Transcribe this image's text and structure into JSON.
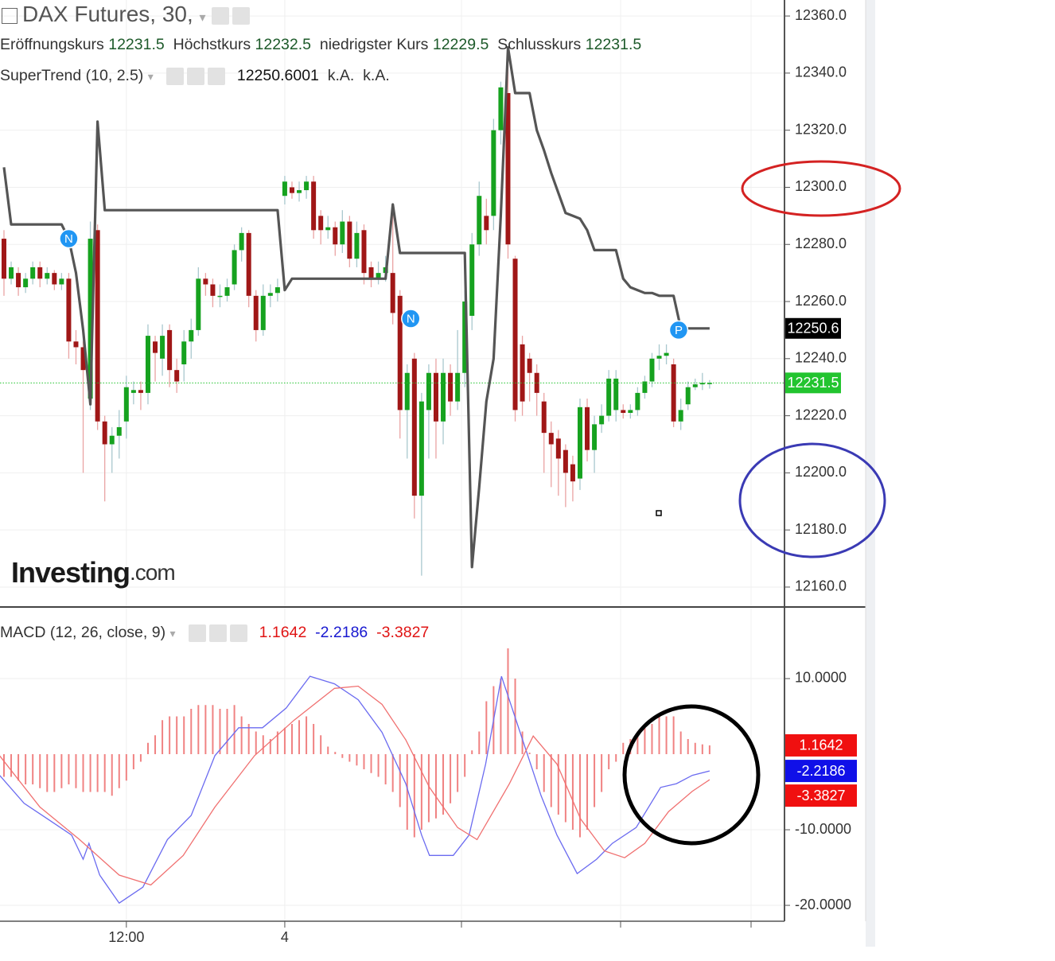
{
  "chart_data": [
    {
      "type": "candlestick",
      "title": "DAX Futures, 30,",
      "ohlc_labels": [
        "Eröffnungskurs",
        "Höchstkurs",
        "niedrigster Kurs",
        "Schlusskurs"
      ],
      "ohlc_last": [
        12231.5,
        12232.5,
        12229.5,
        12231.5
      ],
      "up_color": "#16a21f",
      "down_color": "#a01717",
      "up_wick": "#a9c8ce",
      "down_wick": "#eaa3a3",
      "open": [
        12282,
        12268,
        12270,
        12265,
        12268,
        12272,
        12268,
        12270,
        12266,
        12268,
        12246,
        12244,
        12226,
        12285,
        12218,
        12210,
        12213,
        12218,
        12228,
        12229,
        12228,
        12246,
        12240,
        12250,
        12236,
        12238,
        12246,
        12250,
        12268,
        12266,
        12262,
        12262,
        12266,
        12278,
        12284,
        12262,
        12250,
        12262,
        12263,
        12297,
        12300,
        12298,
        12299,
        12302,
        12290,
        12285,
        12286,
        12280,
        12288,
        12275,
        12285,
        12272,
        12268,
        12270,
        12270,
        12262,
        12222,
        12240,
        12192,
        12222,
        12235,
        12218,
        12235,
        12225,
        12235,
        12255,
        12280,
        12290,
        12290,
        12320,
        12333,
        12275,
        12245,
        12240,
        12235,
        12225,
        12214,
        12212,
        12208,
        12203,
        12198,
        12223,
        12208,
        12217,
        12220,
        12222,
        12222,
        12221,
        12222,
        12228,
        12232,
        12240,
        12241,
        12238,
        12218,
        12224,
        12230,
        12231,
        12231.5
      ],
      "high": [
        12285,
        12274,
        12272,
        12270,
        12274,
        12274,
        12272,
        12271,
        12270,
        12270,
        12250,
        12246,
        12288,
        12287,
        12220,
        12216,
        12222,
        12234,
        12232,
        12232,
        12252,
        12248,
        12252,
        12252,
        12240,
        12250,
        12254,
        12272,
        12270,
        12268,
        12266,
        12268,
        12280,
        12286,
        12285,
        12264,
        12266,
        12266,
        12268,
        12304,
        12302,
        12302,
        12304,
        12304,
        12292,
        12290,
        12288,
        12292,
        12290,
        12288,
        12287,
        12274,
        12274,
        12276,
        12294,
        12264,
        12238,
        12242,
        12228,
        12238,
        12240,
        12240,
        12238,
        12250,
        12264,
        12284,
        12302,
        12296,
        12324,
        12337,
        12349,
        12276,
        12248,
        12242,
        12238,
        12228,
        12218,
        12215,
        12210,
        12206,
        12226,
        12226,
        12220,
        12224,
        12236,
        12236,
        12224,
        12224,
        12230,
        12234,
        12242,
        12245,
        12245,
        12240,
        12226,
        12232,
        12233,
        12235,
        12232.5
      ],
      "low": [
        12262,
        12266,
        12262,
        12263,
        12266,
        12265,
        12266,
        12264,
        12264,
        12240,
        12238,
        12200,
        12222,
        12215,
        12190,
        12200,
        12205,
        12212,
        12224,
        12222,
        12224,
        12232,
        12234,
        12230,
        12228,
        12232,
        12240,
        12248,
        12262,
        12258,
        12258,
        12260,
        12264,
        12274,
        12258,
        12246,
        12248,
        12258,
        12260,
        12294,
        12296,
        12295,
        12296,
        12282,
        12280,
        12282,
        12276,
        12277,
        12272,
        12272,
        12266,
        12265,
        12266,
        12267,
        12252,
        12212,
        12205,
        12184,
        12164,
        12205,
        12205,
        12210,
        12220,
        12222,
        12230,
        12250,
        12276,
        12280,
        12285,
        12315,
        12275,
        12218,
        12220,
        12225,
        12220,
        12200,
        12195,
        12192,
        12188,
        12190,
        12194,
        12204,
        12200,
        12214,
        12218,
        12218,
        12219,
        12219,
        12220,
        12226,
        12230,
        12236,
        12238,
        12216,
        12215,
        12222,
        12229,
        12229,
        12229.5
      ],
      "close": [
        12268,
        12272,
        12265,
        12268,
        12272,
        12268,
        12270,
        12266,
        12268,
        12246,
        12244,
        12236,
        12282,
        12218,
        12210,
        12213,
        12216,
        12230,
        12229,
        12228,
        12248,
        12242,
        12248,
        12236,
        12232,
        12246,
        12250,
        12268,
        12266,
        12262,
        12262,
        12265,
        12278,
        12284,
        12262,
        12250,
        12262,
        12263,
        12265,
        12302,
        12298,
        12299,
        12302,
        12285,
        12285,
        12286,
        12280,
        12288,
        12275,
        12284,
        12270,
        12268,
        12270,
        12272,
        12256,
        12222,
        12235,
        12192,
        12225,
        12235,
        12218,
        12235,
        12225,
        12235,
        12260,
        12280,
        12297,
        12285,
        12320,
        12335,
        12280,
        12222,
        12225,
        12235,
        12228,
        12214,
        12210,
        12205,
        12200,
        12197,
        12223,
        12208,
        12217,
        12220,
        12233,
        12233,
        12221,
        12222,
        12228,
        12232,
        12240,
        12241,
        12242,
        12218,
        12222,
        12230,
        12231,
        12231.5,
        12231.5
      ],
      "indicator": {
        "name": "SuperTrend (10, 2.5)",
        "value": 12250.6001,
        "extra": [
          "k.A.",
          "k.A."
        ],
        "color": "#555555",
        "values": [
          12307,
          12287,
          12287,
          12287,
          12287,
          12287,
          12287,
          12287,
          12287,
          12282,
          12270,
          12250,
          12224,
          12323,
          12292,
          12292,
          12292,
          12292,
          12292,
          12292,
          12292,
          12292,
          12292,
          12292,
          12292,
          12292,
          12292,
          12292,
          12292,
          12292,
          12292,
          12292,
          12292,
          12292,
          12292,
          12292,
          12292,
          12292,
          12292,
          12264,
          12268,
          12268,
          12268,
          12268,
          12268,
          12268,
          12268,
          12268,
          12268,
          12268,
          12268,
          12268,
          12268,
          12268,
          12294,
          12277,
          12277,
          12277,
          12277,
          12277,
          12277,
          12277,
          12277,
          12277,
          12277,
          12167,
          12195,
          12225,
          12240,
          12290,
          12349,
          12333,
          12333,
          12333,
          12320,
          12313,
          12305,
          12298,
          12291,
          12290,
          12289,
          12285,
          12278,
          12278,
          12278,
          12278,
          12268,
          12265,
          12264,
          12263,
          12263,
          12262,
          12262,
          12262,
          12250.6,
          12250.6,
          12250.6,
          12250.6,
          12250.6
        ]
      },
      "markers": [
        {
          "label": "N",
          "x": 9,
          "value": 12282
        },
        {
          "label": "N",
          "x": 56.5,
          "value": 12254
        },
        {
          "label": "P",
          "x": 93.7,
          "value": 12250
        }
      ],
      "marker_color": "#2196f3",
      "price_labels": [
        {
          "value": 12250.6,
          "color": "#000000",
          "line": false
        },
        {
          "value": 12231.5,
          "color": "#22c42f",
          "line": true
        }
      ],
      "xlim": [
        -0.55,
        108.29
      ],
      "xticks": [
        {
          "value": 17,
          "label": "12:00"
        },
        {
          "value": 39,
          "label": "4"
        }
      ],
      "ylim": [
        12153.3,
        12365.6
      ],
      "yticks": [
        {
          "value": 12160,
          "label": "12160.0"
        },
        {
          "value": 12180,
          "label": "12180.0"
        },
        {
          "value": 12200,
          "label": "12200.0"
        },
        {
          "value": 12220,
          "label": "12220.0"
        },
        {
          "value": 12240,
          "label": "12240.0"
        },
        {
          "value": 12260,
          "label": "12260.0"
        },
        {
          "value": 12280,
          "label": "12280.0"
        },
        {
          "value": 12300,
          "label": "12300.0"
        },
        {
          "value": 12320,
          "label": "12320.0"
        },
        {
          "value": 12340,
          "label": "12340.0"
        },
        {
          "value": 12360,
          "label": "12360.0"
        }
      ],
      "grid": true,
      "watermark": [
        "Investing",
        ".com"
      ]
    },
    {
      "type": "macd",
      "title": "MACD (12, 26, close, 9)",
      "legend_values": [
        {
          "value": 1.1642,
          "color": "#e01414"
        },
        {
          "value": -2.2186,
          "color": "#1818d0"
        },
        {
          "value": -3.3827,
          "color": "#e01414"
        }
      ],
      "histogram": {
        "color": "#f08282",
        "values": [
          -3,
          -3,
          -3.5,
          -4,
          -4,
          -4.5,
          -5,
          -5,
          -4.5,
          -4,
          -4.5,
          -5,
          -5,
          -5,
          -5,
          -5.5,
          -4.5,
          -3.5,
          -2,
          -1,
          1.5,
          2.5,
          4.5,
          5,
          5,
          5,
          6,
          6.5,
          6.5,
          6.5,
          6,
          6,
          6.5,
          5,
          4,
          3,
          2.5,
          2,
          3,
          3.5,
          4,
          4.5,
          5,
          4,
          2.5,
          1,
          0.3,
          -0.5,
          -1,
          -1.5,
          -2,
          -2.5,
          -3,
          -4,
          -5,
          -7,
          -10,
          -11,
          -10,
          -9,
          -8.5,
          -8,
          -6.5,
          -5,
          -3,
          0.5,
          3,
          7,
          9,
          10,
          14,
          10,
          3,
          0.2,
          -2,
          -5,
          -7,
          -8,
          -9,
          -10,
          -11,
          -10,
          -7,
          -5,
          -2,
          -1,
          1.5,
          2,
          3,
          3.5,
          4,
          5,
          5,
          5,
          3,
          2,
          1.5,
          1.3,
          1.1642
        ]
      },
      "series": [
        {
          "color": "#6b6bf0",
          "x": [
            -0.6,
            2.8,
            6.1,
            9.4,
            11,
            11.8,
            13.3,
            16,
            19.3,
            22.7,
            26,
            29.3,
            32.6,
            35.9,
            39.2,
            42.5,
            45.9,
            49.2,
            52.5,
            55.8,
            58,
            59.1,
            62.4,
            64.6,
            66.9,
            69.1,
            71.3,
            74.6,
            76.8,
            79.6,
            82.3,
            84.5,
            87.8,
            91.2,
            93.4,
            95.6,
            98
          ],
          "values": [
            -2.8,
            -6.5,
            -8.6,
            -10.7,
            -13.9,
            -11.8,
            -16,
            -19.7,
            -17.6,
            -11.3,
            -8.1,
            -0.2,
            3.5,
            3.5,
            6.1,
            10.3,
            9.3,
            7.2,
            2.9,
            -3.9,
            -10.7,
            -13.4,
            -13.4,
            -10.7,
            -1.3,
            10.3,
            4,
            -5.5,
            -10.7,
            -15.8,
            -13.9,
            -11.8,
            -9.7,
            -4.4,
            -3.9,
            -2.8,
            -2.2186
          ]
        },
        {
          "color": "#f07070",
          "x": [
            -0.6,
            5,
            10.5,
            16,
            20.4,
            24.9,
            29.3,
            34.8,
            40.3,
            45.9,
            49.2,
            52.5,
            55.8,
            59.1,
            63,
            65.7,
            70.2,
            73.5,
            76.8,
            80.1,
            83.4,
            86.2,
            89,
            92.3,
            95.6,
            98
          ],
          "values": [
            -0.2,
            -7,
            -11.3,
            -16,
            -17.3,
            -13.4,
            -7,
            -0.2,
            4.5,
            8.7,
            9,
            6.6,
            1.9,
            -4.4,
            -9.7,
            -11.3,
            -3.9,
            2.4,
            -1.3,
            -8.6,
            -12.8,
            -13.7,
            -11.8,
            -7.6,
            -4.9,
            -3.3827
          ]
        }
      ],
      "axis_labels": [
        {
          "value": 1.1642,
          "color": "#f01010"
        },
        {
          "value": -2.2186,
          "color": "#1010e8"
        },
        {
          "value": -3.3827,
          "color": "#f01010"
        }
      ],
      "ylim": [
        -22.1,
        19.26
      ],
      "yticks": [
        {
          "value": 10,
          "label": "10.0000"
        },
        {
          "value": -10,
          "label": "-10.0000"
        },
        {
          "value": -20,
          "label": "-20.0000"
        }
      ],
      "grid": true
    }
  ]
}
